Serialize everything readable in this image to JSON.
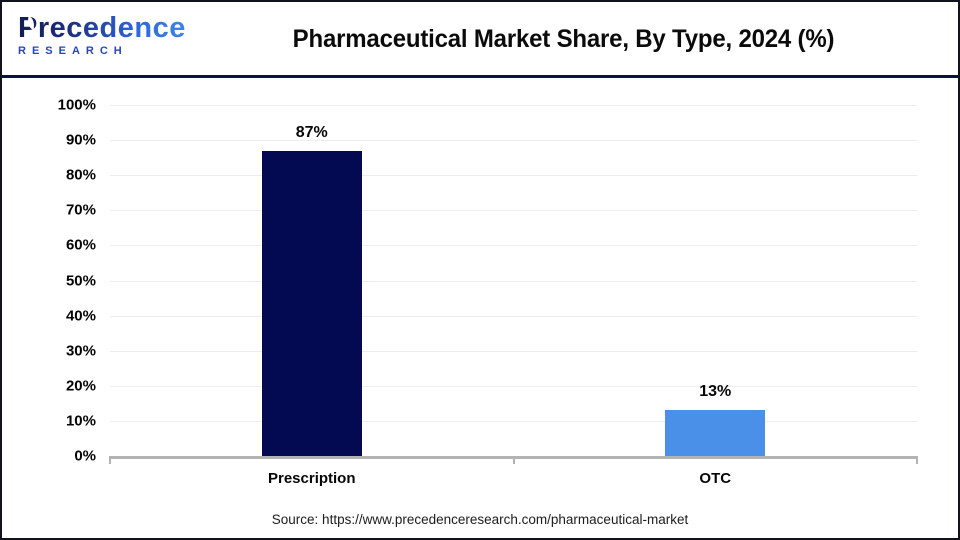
{
  "header": {
    "logo": {
      "line1": "Precedence",
      "line2": "RESEARCH"
    },
    "title": "Pharmaceutical Market Share, By Type, 2024 (%)"
  },
  "chart_data": {
    "type": "bar",
    "title": "Pharmaceutical Market Share, By Type, 2024 (%)",
    "categories": [
      "Prescription",
      "OTC"
    ],
    "values": [
      87,
      13
    ],
    "value_labels": [
      "87%",
      "13%"
    ],
    "bar_colors": [
      "#030a52",
      "#4a90e8"
    ],
    "xlabel": "",
    "ylabel": "",
    "ylim": [
      0,
      100
    ],
    "ytick_step": 10,
    "ytick_labels": [
      "0%",
      "10%",
      "20%",
      "30%",
      "40%",
      "50%",
      "60%",
      "70%",
      "80%",
      "90%",
      "100%"
    ],
    "grid": true,
    "legend": false
  },
  "footer": {
    "source": "Source: https://www.precedenceresearch.com/pharmaceutical-market"
  },
  "colors": {
    "bar_prescription": "#030a52",
    "bar_otc": "#4a90e8",
    "header_rule": "#0c1240",
    "axis_line": "#b3b3b3",
    "gridline": "#ededed",
    "logo_navy": "#131c52",
    "logo_blue": "#3e85e8"
  }
}
